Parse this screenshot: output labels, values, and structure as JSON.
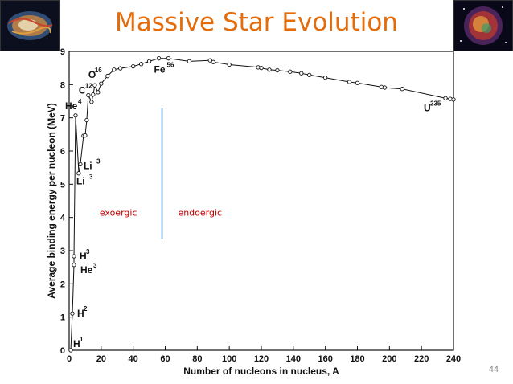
{
  "slide": {
    "title": "Massive Star Evolution",
    "page_number": "44",
    "colors": {
      "title": "#e46c0a",
      "region_text": "#c00000",
      "divider": "#2e75b6"
    }
  },
  "images": {
    "left": "crab-nebula-image",
    "right": "supernova-remnant-image"
  },
  "chart_data": {
    "type": "line",
    "title": "",
    "xlabel": "Number of nucleons in nucleus, A",
    "ylabel": "Average binding energy per nucleon (MeV)",
    "xlim": [
      0,
      240
    ],
    "ylim": [
      0,
      9
    ],
    "xticks": [
      "0",
      "20",
      "40",
      "60",
      "80",
      "100",
      "120",
      "140",
      "160",
      "180",
      "200",
      "220",
      "240"
    ],
    "yticks": [
      "0",
      "1",
      "2",
      "3",
      "4",
      "5",
      "6",
      "7",
      "8",
      "9"
    ],
    "series": [
      {
        "name": "binding energy",
        "x": [
          1,
          2,
          3,
          3,
          4,
          6,
          7,
          9,
          10,
          11,
          12,
          14,
          15,
          16,
          18,
          20,
          24,
          28,
          32,
          40,
          45,
          50,
          56,
          62,
          75,
          88,
          90,
          100,
          118,
          120,
          125,
          130,
          138,
          145,
          150,
          160,
          175,
          180,
          195,
          197,
          208,
          235,
          238,
          240
        ],
        "y": [
          0,
          1.11,
          2.57,
          2.83,
          7.07,
          5.33,
          5.6,
          6.46,
          6.47,
          6.93,
          7.68,
          7.48,
          7.7,
          7.98,
          7.77,
          8.03,
          8.26,
          8.45,
          8.49,
          8.55,
          8.62,
          8.7,
          8.79,
          8.79,
          8.7,
          8.73,
          8.68,
          8.6,
          8.52,
          8.5,
          8.45,
          8.43,
          8.39,
          8.34,
          8.29,
          8.21,
          8.08,
          8.05,
          7.93,
          7.91,
          7.87,
          7.59,
          7.57,
          7.55
        ]
      }
    ],
    "point_labels": [
      {
        "text": "H",
        "sup": "1",
        "x": 1,
        "y": 0
      },
      {
        "text": "H",
        "sup": "2",
        "x": 2,
        "y": 1.11
      },
      {
        "text": "He",
        "sup": "3",
        "x": 3,
        "y": 2.57
      },
      {
        "text": "H",
        "sup": "3",
        "x": 3,
        "y": 2.83
      },
      {
        "text": "Li",
        "sup": "3",
        "x": 6,
        "y": 5.33
      },
      {
        "text": "Li",
        "sup": "3",
        "x": 7,
        "y": 5.6
      },
      {
        "text": "He",
        "sup": "4",
        "x": 4,
        "y": 7.07
      },
      {
        "text": "C",
        "sup": "12",
        "x": 12,
        "y": 7.68
      },
      {
        "text": "O",
        "sup": "16",
        "x": 16,
        "y": 7.98
      },
      {
        "text": "Fe",
        "sup": "56",
        "x": 56,
        "y": 8.79
      },
      {
        "text": "U",
        "sup": "235",
        "x": 235,
        "y": 7.59
      }
    ],
    "annotations": {
      "left_region": "exoergic",
      "right_region": "endoergic",
      "divider_x": 58
    }
  }
}
